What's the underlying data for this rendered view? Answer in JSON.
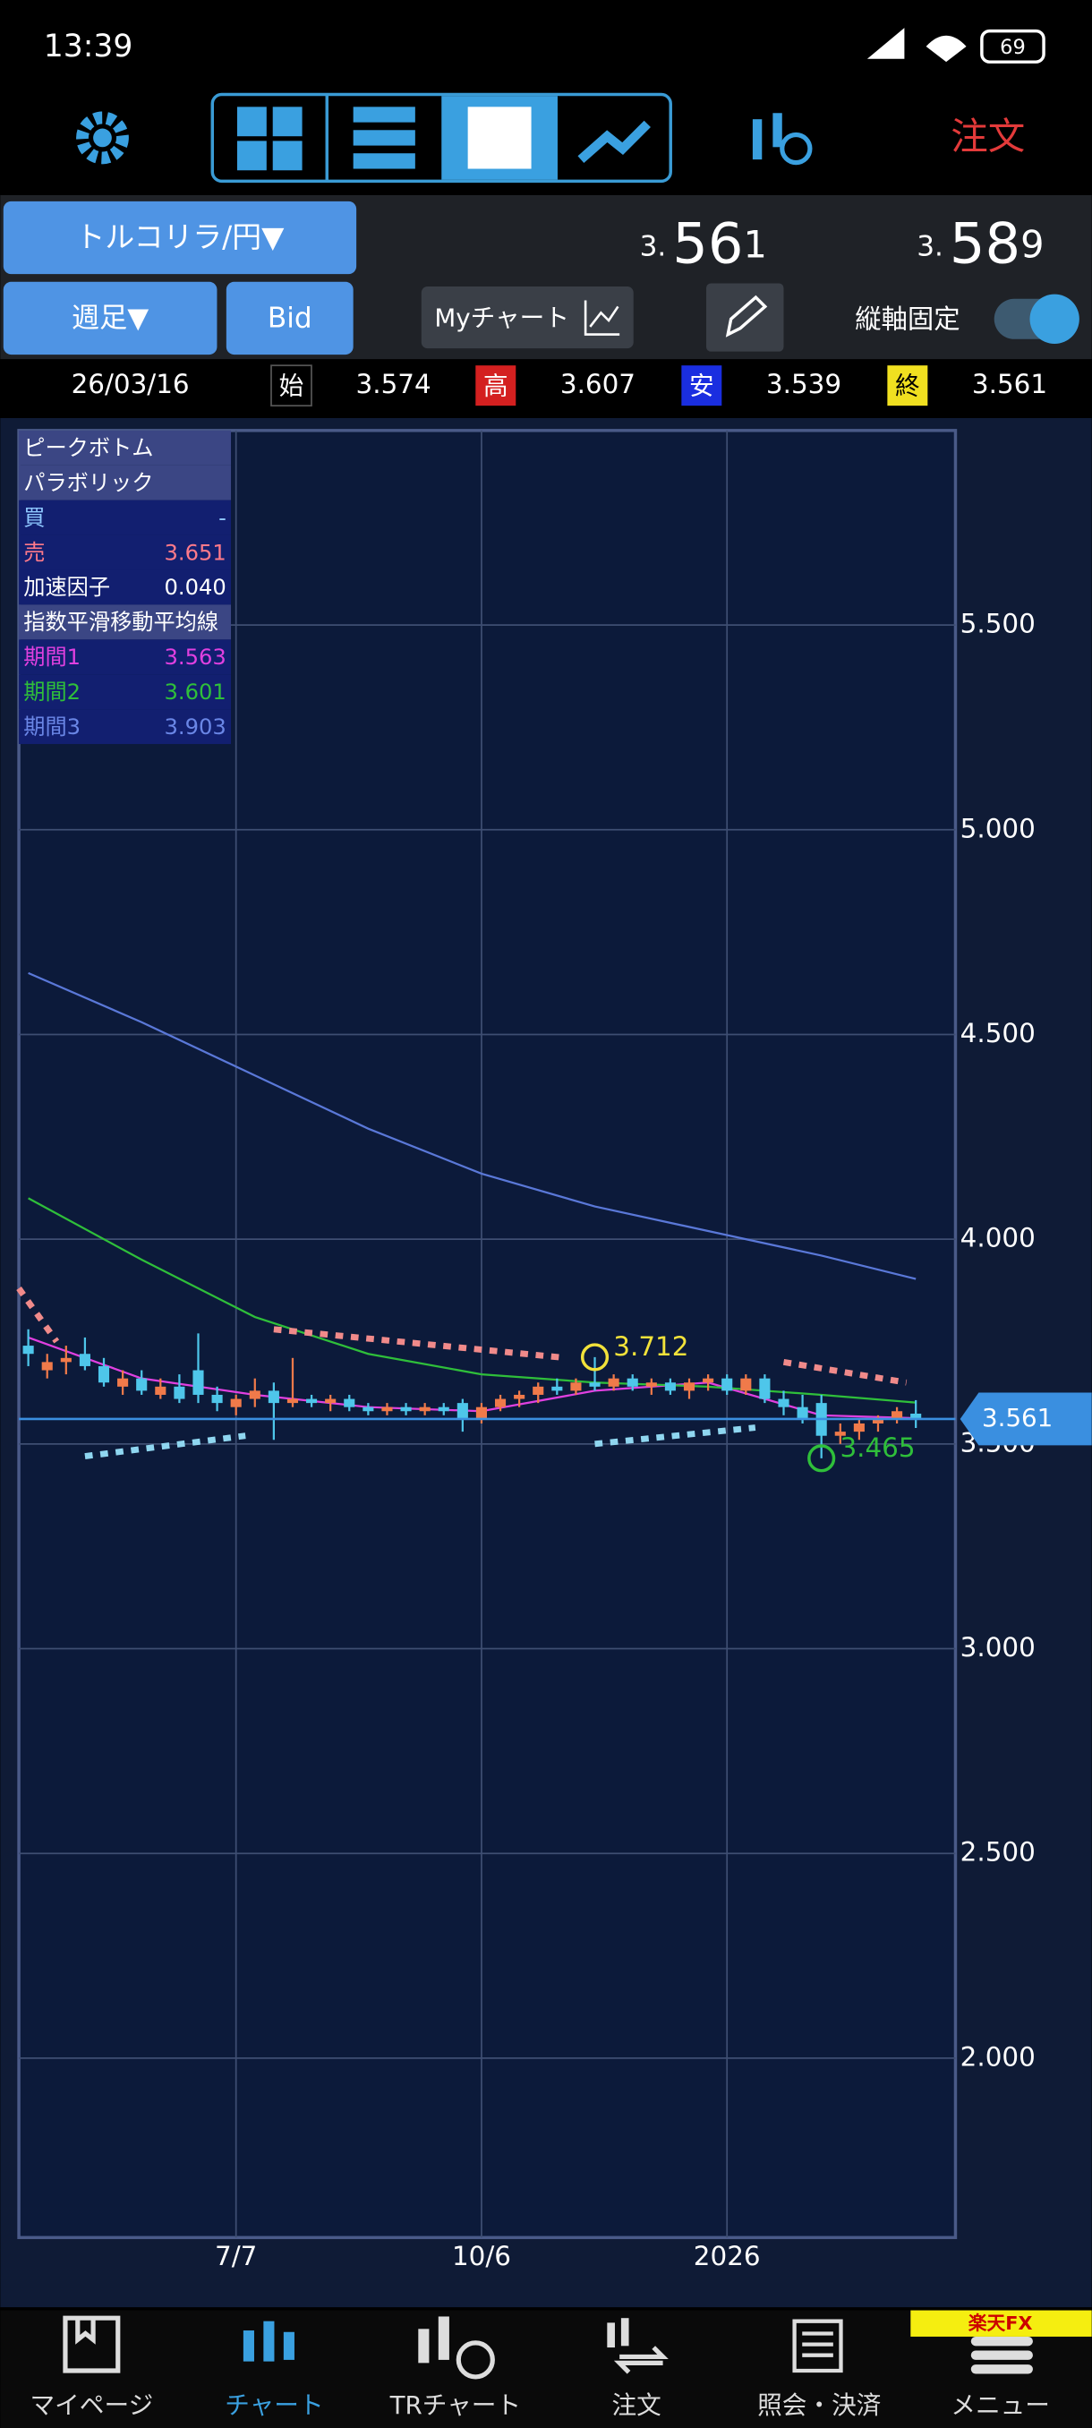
{
  "status_bar": {
    "time": "13:39",
    "battery": "69"
  },
  "toolbar": {
    "order": "注文"
  },
  "symbol": "トルコリラ/円▼",
  "bid": {
    "prefix": "3.",
    "main": "56",
    "last": "1"
  },
  "ask": {
    "prefix": "3.",
    "main": "58",
    "last": "9"
  },
  "controls": {
    "period": "週足▼",
    "side": "Bid",
    "my_chart": "Myチャート",
    "axis_lock": "縦軸固定"
  },
  "ohlc": {
    "date": "26/03/16",
    "open_label": "始",
    "open": "3.574",
    "high_label": "高",
    "high": "3.607",
    "low_label": "安",
    "low": "3.539",
    "close_label": "終",
    "close": "3.561"
  },
  "indicator_panel": {
    "rows": [
      [
        "ピークボトム"
      ],
      [
        "パラボリック"
      ],
      [
        "買",
        "-"
      ],
      [
        "売",
        "3.651"
      ],
      [
        "加速因子",
        "0.040"
      ],
      [
        "指数平滑移動平均線"
      ],
      [
        "期間1",
        "3.563"
      ],
      [
        "期間2",
        "3.601"
      ],
      [
        "期間3",
        "3.903"
      ]
    ]
  },
  "chart_data": {
    "type": "candlestick",
    "x": [
      0,
      1,
      2,
      3,
      4,
      5,
      6,
      7,
      8,
      9,
      10,
      11,
      12,
      13,
      14,
      15,
      16,
      17,
      18,
      19,
      20,
      21,
      22,
      23,
      24,
      25,
      26,
      27,
      28,
      29,
      30,
      31,
      32,
      33,
      34,
      35,
      36,
      37,
      38,
      39,
      40,
      41,
      42,
      43,
      44,
      45,
      46,
      47
    ],
    "open": [
      3.74,
      3.68,
      3.7,
      3.72,
      3.69,
      3.64,
      3.66,
      3.62,
      3.64,
      3.68,
      3.62,
      3.59,
      3.61,
      3.63,
      3.6,
      3.61,
      3.6,
      3.61,
      3.59,
      3.58,
      3.59,
      3.58,
      3.59,
      3.6,
      3.56,
      3.59,
      3.61,
      3.62,
      3.64,
      3.63,
      3.65,
      3.64,
      3.66,
      3.64,
      3.65,
      3.63,
      3.65,
      3.66,
      3.63,
      3.66,
      3.61,
      3.59,
      3.6,
      3.52,
      3.53,
      3.55,
      3.56,
      3.574
    ],
    "high": [
      3.78,
      3.72,
      3.74,
      3.76,
      3.71,
      3.68,
      3.68,
      3.66,
      3.67,
      3.77,
      3.64,
      3.62,
      3.66,
      3.65,
      3.71,
      3.62,
      3.62,
      3.62,
      3.6,
      3.6,
      3.6,
      3.6,
      3.6,
      3.61,
      3.6,
      3.62,
      3.63,
      3.65,
      3.66,
      3.66,
      3.712,
      3.67,
      3.67,
      3.66,
      3.66,
      3.66,
      3.67,
      3.67,
      3.67,
      3.67,
      3.63,
      3.62,
      3.62,
      3.55,
      3.56,
      3.57,
      3.59,
      3.607
    ],
    "low": [
      3.69,
      3.66,
      3.67,
      3.68,
      3.64,
      3.62,
      3.62,
      3.61,
      3.6,
      3.6,
      3.58,
      3.57,
      3.59,
      3.51,
      3.59,
      3.59,
      3.58,
      3.58,
      3.57,
      3.57,
      3.57,
      3.57,
      3.57,
      3.53,
      3.55,
      3.58,
      3.59,
      3.6,
      3.62,
      3.62,
      3.63,
      3.63,
      3.63,
      3.62,
      3.62,
      3.61,
      3.63,
      3.62,
      3.62,
      3.6,
      3.57,
      3.55,
      3.465,
      3.5,
      3.51,
      3.53,
      3.55,
      3.539
    ],
    "close": [
      3.72,
      3.7,
      3.71,
      3.69,
      3.65,
      3.66,
      3.63,
      3.64,
      3.61,
      3.62,
      3.6,
      3.61,
      3.63,
      3.6,
      3.61,
      3.6,
      3.61,
      3.59,
      3.58,
      3.59,
      3.58,
      3.59,
      3.58,
      3.56,
      3.59,
      3.61,
      3.62,
      3.64,
      3.63,
      3.65,
      3.64,
      3.66,
      3.64,
      3.65,
      3.63,
      3.65,
      3.66,
      3.63,
      3.66,
      3.61,
      3.59,
      3.56,
      3.52,
      3.53,
      3.55,
      3.56,
      3.58,
      3.561
    ],
    "up_color": "#f07a4a",
    "down_color": "#4ec6ea",
    "lines": [
      {
        "name": "期間1",
        "color": "#e040e0",
        "x": [
          0,
          6,
          12,
          18,
          24,
          30,
          36,
          42,
          47
        ],
        "values": [
          3.76,
          3.66,
          3.62,
          3.59,
          3.58,
          3.63,
          3.65,
          3.57,
          3.563
        ]
      },
      {
        "name": "期間2",
        "color": "#2fbf3a",
        "x": [
          0,
          6,
          12,
          18,
          24,
          30,
          36,
          42,
          47
        ],
        "values": [
          4.1,
          3.95,
          3.81,
          3.72,
          3.67,
          3.65,
          3.64,
          3.62,
          3.601
        ]
      },
      {
        "name": "期間3",
        "color": "#5a78d8",
        "x": [
          0,
          6,
          12,
          18,
          24,
          30,
          36,
          42,
          47
        ],
        "values": [
          4.65,
          4.53,
          4.4,
          4.27,
          4.16,
          4.08,
          4.02,
          3.96,
          3.903
        ]
      }
    ],
    "sar": [
      {
        "color": "#f08a8a",
        "x": [
          -0.5,
          1.5
        ],
        "values": [
          3.88,
          3.75
        ]
      },
      {
        "color": "#8fd6f0",
        "x": [
          3,
          11.5
        ],
        "values": [
          3.47,
          3.52
        ]
      },
      {
        "color": "#f08a8a",
        "x": [
          13,
          28.5
        ],
        "values": [
          3.78,
          3.71
        ]
      },
      {
        "color": "#8fd6f0",
        "x": [
          30,
          38.5
        ],
        "values": [
          3.5,
          3.54
        ]
      },
      {
        "color": "#f08a8a",
        "x": [
          40,
          46.5
        ],
        "values": [
          3.7,
          3.65
        ]
      }
    ],
    "annotations": [
      {
        "x": 30,
        "value": 3.712,
        "label": "3.712",
        "color": "#f2e23a"
      },
      {
        "x": 42,
        "value": 3.465,
        "label": "3.465",
        "color": "#2fbf3a"
      }
    ],
    "last_price": 3.561,
    "last_price_color": "#3a8fe0",
    "xlim": [
      -0.5,
      49.1
    ],
    "ylim": [
      1.562,
      5.975
    ],
    "xticks": [
      {
        "value": 11,
        "label": "7/7"
      },
      {
        "value": 24,
        "label": "10/6"
      },
      {
        "value": 37,
        "label": "2026"
      }
    ],
    "yticks": [
      {
        "value": 2,
        "label": "2.000"
      },
      {
        "value": 2.5,
        "label": "2.500"
      },
      {
        "value": 3,
        "label": "3.000"
      },
      {
        "value": 3.5,
        "label": "3.500"
      },
      {
        "value": 4,
        "label": "4.000"
      },
      {
        "value": 4.5,
        "label": "4.500"
      },
      {
        "value": 5,
        "label": "5.000"
      },
      {
        "value": 5.5,
        "label": "5.500"
      }
    ],
    "grid": true
  },
  "bottom_nav": {
    "items": [
      "マイページ",
      "チャート",
      "TRチャート",
      "注文",
      "照会・決済",
      "メニュー"
    ],
    "badge": "楽天FX"
  }
}
